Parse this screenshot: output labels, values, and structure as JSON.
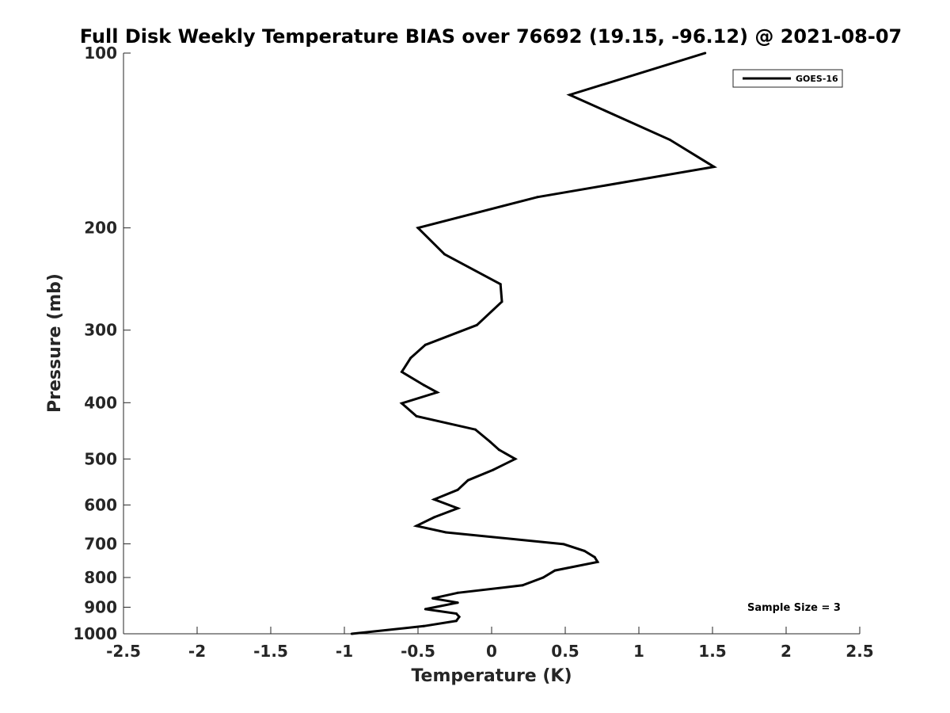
{
  "chart_data": {
    "type": "line",
    "title": "Full Disk Weekly Temperature BIAS over 76692 (19.15, -96.12) @ 2021-08-07",
    "xlabel": "Temperature (K)",
    "ylabel": "Pressure (mb)",
    "xlim": [
      -2.5,
      2.5
    ],
    "ylim": [
      100,
      1000
    ],
    "y_scale": "log",
    "y_reversed": true,
    "grid": false,
    "x_ticks": [
      -2.5,
      -2,
      -1.5,
      -1,
      -0.5,
      0,
      0.5,
      1,
      1.5,
      2,
      2.5
    ],
    "x_tick_labels": [
      "-2.5",
      "-2",
      "-1.5",
      "-1",
      "-0.5",
      "0",
      "0.5",
      "1",
      "1.5",
      "2",
      "2.5"
    ],
    "y_ticks": [
      100,
      200,
      300,
      400,
      500,
      600,
      700,
      800,
      900,
      1000
    ],
    "y_tick_labels": [
      "100",
      "200",
      "300",
      "400",
      "500",
      "600",
      "700",
      "800",
      "900",
      "1000"
    ],
    "legend": {
      "placement": "top-right",
      "entries": [
        "GOES-16"
      ]
    },
    "annotation": "Sample Size = 3",
    "series": [
      {
        "name": "GOES-16",
        "color": "#000000",
        "points": [
          [
            1.45,
            100
          ],
          [
            0.53,
            118
          ],
          [
            1.21,
            141
          ],
          [
            1.51,
            157
          ],
          [
            0.31,
            177
          ],
          [
            -0.5,
            200
          ],
          [
            -0.32,
            222
          ],
          [
            0.06,
            250
          ],
          [
            0.07,
            268
          ],
          [
            -0.1,
            294
          ],
          [
            -0.45,
            318
          ],
          [
            -0.55,
            335
          ],
          [
            -0.61,
            354
          ],
          [
            -0.46,
            373
          ],
          [
            -0.37,
            384
          ],
          [
            -0.61,
            401
          ],
          [
            -0.51,
            422
          ],
          [
            -0.11,
            445
          ],
          [
            -0.01,
            467
          ],
          [
            0.05,
            482
          ],
          [
            0.16,
            500
          ],
          [
            0.01,
            522
          ],
          [
            -0.16,
            544
          ],
          [
            -0.23,
            565
          ],
          [
            -0.39,
            587
          ],
          [
            -0.23,
            608
          ],
          [
            -0.39,
            630
          ],
          [
            -0.51,
            652
          ],
          [
            -0.31,
            669
          ],
          [
            0.49,
            701
          ],
          [
            0.63,
            720
          ],
          [
            0.7,
            738
          ],
          [
            0.72,
            752
          ],
          [
            0.43,
            778
          ],
          [
            0.35,
            800
          ],
          [
            0.21,
            825
          ],
          [
            -0.23,
            850
          ],
          [
            -0.4,
            869
          ],
          [
            -0.23,
            884
          ],
          [
            -0.45,
            907
          ],
          [
            -0.24,
            923
          ],
          [
            -0.22,
            935
          ],
          [
            -0.24,
            950
          ],
          [
            -0.46,
            970
          ],
          [
            -0.95,
            1000
          ]
        ]
      }
    ]
  }
}
